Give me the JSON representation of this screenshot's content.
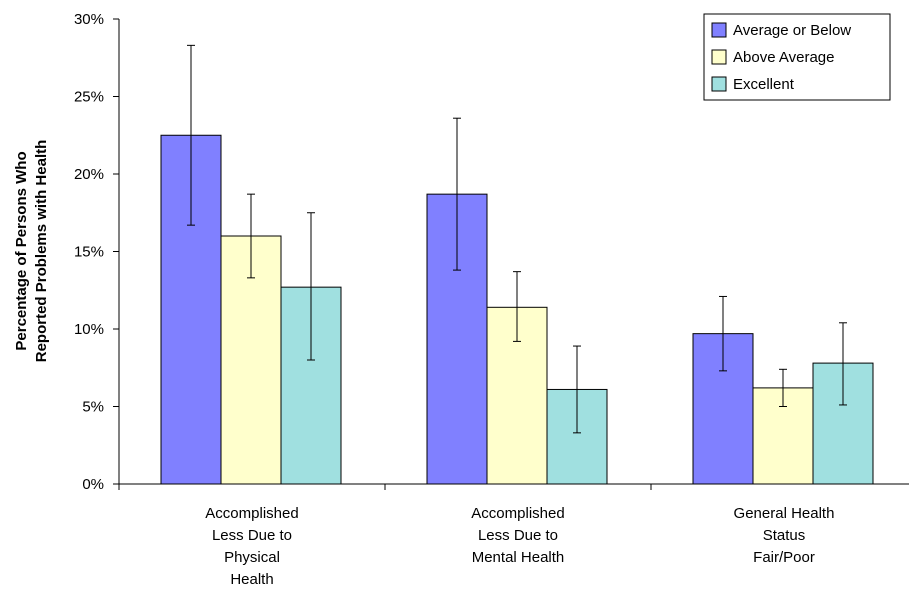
{
  "chart_data": {
    "type": "bar",
    "categories": [
      [
        "Accomplished",
        "Less Due to",
        "Physical",
        "Health"
      ],
      [
        "Accomplished",
        "Less Due to",
        "Mental Health"
      ],
      [
        "General Health",
        "Status",
        "Fair/Poor"
      ]
    ],
    "series": [
      {
        "name": "Average or Below",
        "color": "#8080FF",
        "values": [
          22.5,
          18.7,
          9.7
        ],
        "error_low": [
          16.7,
          13.8,
          7.3
        ],
        "error_high": [
          28.3,
          23.6,
          12.1
        ]
      },
      {
        "name": "Above Average",
        "color": "#FFFFCC",
        "values": [
          16.0,
          11.4,
          6.2
        ],
        "error_low": [
          13.3,
          9.2,
          5.0
        ],
        "error_high": [
          18.7,
          13.7,
          7.4
        ]
      },
      {
        "name": "Excellent",
        "color": "#A0E0E0",
        "values": [
          12.7,
          6.1,
          7.8
        ],
        "error_low": [
          8.0,
          3.3,
          5.1
        ],
        "error_high": [
          17.5,
          8.9,
          10.4
        ]
      }
    ],
    "ylabel": [
      "Percentage of Persons Who",
      "Reported Problems with Health"
    ],
    "xlabel": "",
    "ylim": [
      0,
      30
    ],
    "yticks": [
      "0%",
      "5%",
      "10%",
      "15%",
      "20%",
      "25%",
      "30%"
    ],
    "ytick_values": [
      0,
      5,
      10,
      15,
      20,
      25,
      30
    ],
    "grid": false,
    "legend_position": "top-right"
  }
}
